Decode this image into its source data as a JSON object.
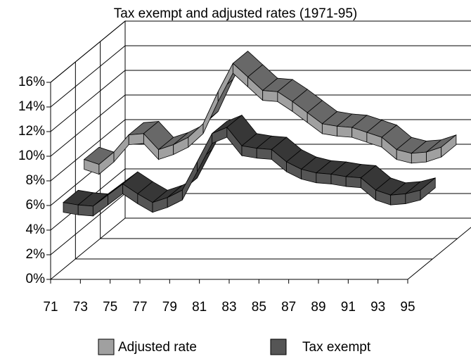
{
  "chart_data": {
    "type": "line3d",
    "title": "Tax exempt and adjusted rates (1971-95)",
    "categories": [
      "71",
      null,
      "73",
      null,
      "75",
      null,
      "77",
      null,
      "79",
      null,
      "81",
      null,
      "83",
      null,
      "85",
      null,
      "87",
      null,
      "89",
      null,
      "91",
      null,
      "93",
      null,
      "95"
    ],
    "series": [
      {
        "name": "Adjusted rate",
        "color": "#a0a0a0",
        "values": [
          7.5,
          7.1,
          8.1,
          9.5,
          9.6,
          8.3,
          8.7,
          9.3,
          10.4,
          13.0,
          15.3,
          14.2,
          13.1,
          13.0,
          12.2,
          11.3,
          10.4,
          10.2,
          10.1,
          9.7,
          9.3,
          8.3,
          8.0,
          8.1,
          8.5
        ]
      },
      {
        "name": "Tax exempt",
        "color": "#555555",
        "values": [
          5.4,
          5.2,
          5.1,
          6.0,
          6.9,
          6.1,
          5.4,
          5.8,
          6.4,
          8.7,
          11.0,
          11.5,
          10.0,
          9.8,
          9.7,
          8.7,
          8.1,
          7.8,
          7.7,
          7.5,
          7.4,
          6.4,
          6.0,
          6.1,
          6.4
        ]
      }
    ],
    "ylim": [
      0,
      16
    ],
    "yticks": [
      {
        "value": 0,
        "label": "0%"
      },
      {
        "value": 2,
        "label": "2%"
      },
      {
        "value": 4,
        "label": "4%"
      },
      {
        "value": 6,
        "label": "6%"
      },
      {
        "value": 8,
        "label": "8%"
      },
      {
        "value": 10,
        "label": "10%"
      },
      {
        "value": 12,
        "label": "12%"
      },
      {
        "value": 14,
        "label": "14%"
      },
      {
        "value": 16,
        "label": "16%"
      }
    ],
    "grid": true,
    "legend": "bottom"
  }
}
